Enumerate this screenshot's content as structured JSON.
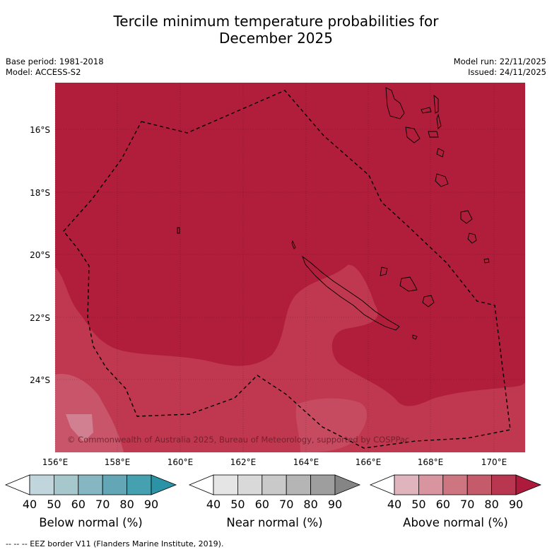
{
  "title": {
    "line1": "Tercile minimum temperature probabilities for",
    "line2": "December 2025"
  },
  "meta": {
    "base_period": "Base period: 1981-2018",
    "model": "Model: ACCESS-S2",
    "model_run": "Model run: 22/11/2025",
    "issued": "Issued: 24/11/2025"
  },
  "map": {
    "lat_labels": [
      "16°S",
      "18°S",
      "20°S",
      "22°S",
      "24°S"
    ],
    "lon_labels": [
      "156°E",
      "158°E",
      "160°E",
      "162°E",
      "164°E",
      "166°E",
      "168°E",
      "170°E"
    ],
    "copyright": "© Commonwealth of Australia 2025, Bureau of Meteorology, supported by COSPPac",
    "colors": {
      "above_80": "#b11e3b",
      "above_70": "#c0384f",
      "above_60": "#d07080",
      "above_50": "#d0949e"
    }
  },
  "legends": [
    {
      "label": "Below normal (%)",
      "ticks": [
        "40",
        "50",
        "60",
        "70",
        "80",
        "90"
      ],
      "colors": [
        "#c1d6dc",
        "#a6c8cd",
        "#85b6c1",
        "#63a6b5",
        "#45a0b0",
        "#2b93a6"
      ]
    },
    {
      "label": "Near normal (%)",
      "ticks": [
        "40",
        "50",
        "60",
        "70",
        "80",
        "90"
      ],
      "colors": [
        "#e5e5e5",
        "#d9d9d9",
        "#c9c9c9",
        "#b5b5b5",
        "#9e9e9e",
        "#858585"
      ]
    },
    {
      "label": "Above normal (%)",
      "ticks": [
        "40",
        "50",
        "60",
        "70",
        "80",
        "90"
      ],
      "colors": [
        "#e0b4bd",
        "#d8949f",
        "#cd7681",
        "#c55a6b",
        "#b93650",
        "#ad1a3b"
      ]
    }
  ],
  "footnote": "-- -- -- EEZ border V11 (Flanders Marine Institute, 2019)."
}
